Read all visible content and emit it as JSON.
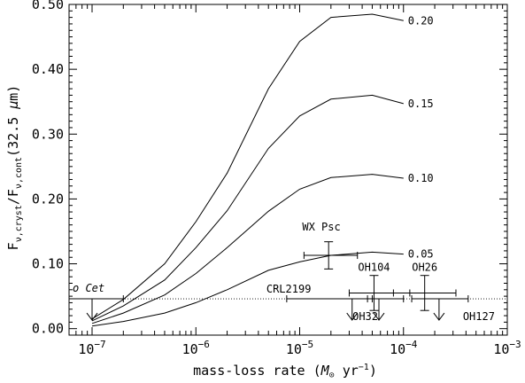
{
  "chart_data": {
    "type": "line",
    "xlabel": "mass-loss rate (M⊙ yr⁻¹)",
    "ylabel": "Fν,cryst/Fν,cont(32.5 μm)",
    "xscale": "log",
    "xlim": [
      6e-08,
      0.001
    ],
    "ylim": [
      -0.01,
      0.5
    ],
    "x_ticks": [
      {
        "value": 1e-07,
        "mant": "10",
        "exp": "−7"
      },
      {
        "value": 1e-06,
        "mant": "10",
        "exp": "−6"
      },
      {
        "value": 1e-05,
        "mant": "10",
        "exp": "−5"
      },
      {
        "value": 0.0001,
        "mant": "10",
        "exp": "−4"
      },
      {
        "value": 0.001,
        "mant": "10",
        "exp": "−3"
      }
    ],
    "y_ticks": [
      {
        "value": 0.0,
        "label": "0.00"
      },
      {
        "value": 0.1,
        "label": "0.10"
      },
      {
        "value": 0.2,
        "label": "0.20"
      },
      {
        "value": 0.3,
        "label": "0.30"
      },
      {
        "value": 0.4,
        "label": "0.40"
      },
      {
        "value": 0.5,
        "label": "0.50"
      }
    ],
    "x": [
      1e-07,
      2e-07,
      5e-07,
      1e-06,
      2e-06,
      5e-06,
      1e-05,
      2e-05,
      5e-05,
      0.0001
    ],
    "series": [
      {
        "name": "0.20",
        "values": [
          0.015,
          0.045,
          0.1,
          0.165,
          0.24,
          0.37,
          0.443,
          0.48,
          0.485,
          0.475
        ]
      },
      {
        "name": "0.15",
        "values": [
          0.012,
          0.035,
          0.075,
          0.125,
          0.182,
          0.278,
          0.328,
          0.354,
          0.36,
          0.347
        ]
      },
      {
        "name": "0.10",
        "values": [
          0.008,
          0.024,
          0.052,
          0.085,
          0.125,
          0.181,
          0.215,
          0.233,
          0.238,
          0.232
        ]
      },
      {
        "name": "0.05",
        "values": [
          0.004,
          0.011,
          0.024,
          0.04,
          0.06,
          0.09,
          0.103,
          0.113,
          0.118,
          0.115
        ]
      }
    ],
    "threshold_y": 0.046,
    "measurements": [
      {
        "name": "o Cet",
        "x": 1e-07,
        "xmin": 6e-08,
        "xmax": 2e-07,
        "upper_limit": 0.046,
        "label_pos": "above-left"
      },
      {
        "name": "WX Psc",
        "x": 1.9e-05,
        "xmin": 1.1e-05,
        "xmax": 3.6e-05,
        "y": 0.113,
        "yerr": 0.021,
        "label_pos": "above-left"
      },
      {
        "name": "OH104",
        "x": 5.2e-05,
        "xmin": 3e-05,
        "xmax": 0.000115,
        "y": 0.055,
        "yerr": 0.027,
        "label_pos": "above"
      },
      {
        "name": "OH26",
        "x": 0.00016,
        "xmin": 8e-05,
        "xmax": 0.00032,
        "y": 0.055,
        "yerr": 0.027,
        "label_pos": "above"
      },
      {
        "name": "CRL2199",
        "x": 3.2e-05,
        "xmin": 7.5e-06,
        "xmax": 5e-05,
        "upper_limit": 0.046,
        "label_pos": "above-left"
      },
      {
        "name": "OH32",
        "x": 5.8e-05,
        "xmin": 4.5e-05,
        "xmax": 0.0001,
        "upper_limit": 0.046,
        "label_pos": "below-left"
      },
      {
        "name": "OH127",
        "x": 0.00022,
        "xmin": 0.00012,
        "xmax": 0.00042,
        "upper_limit": 0.046,
        "label_pos": "below-right"
      }
    ]
  }
}
